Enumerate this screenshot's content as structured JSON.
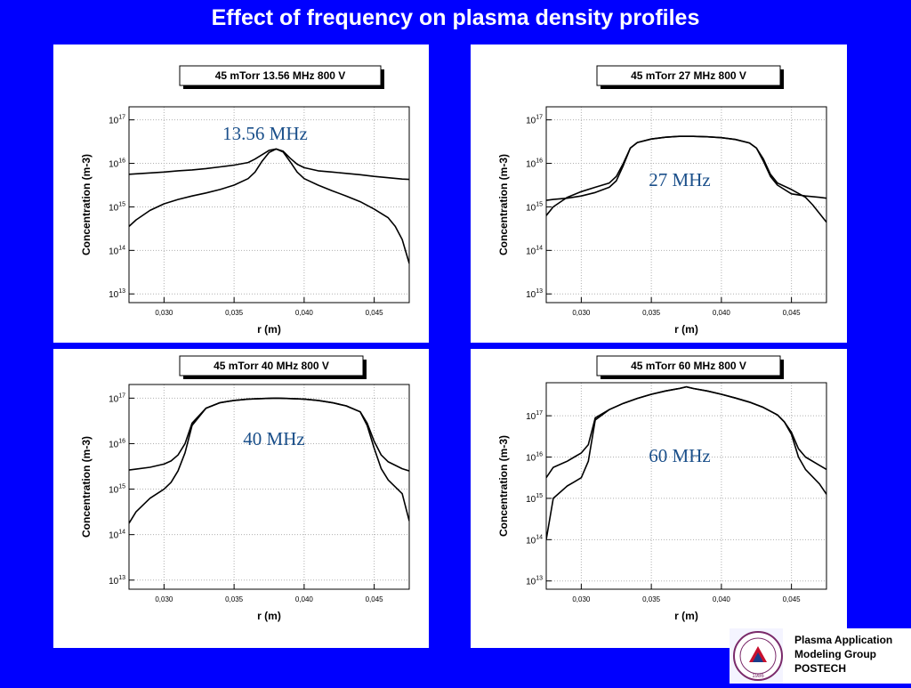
{
  "slide": {
    "title": "Effect of frequency on plasma density profiles",
    "footer_lines": [
      "Plasma Application",
      "Modeling Group",
      "POSTECH"
    ],
    "logo_year": "1986"
  },
  "colors": {
    "background": "#0000ff",
    "panel": "#ffffff",
    "label_blue": "#1a4f8a",
    "curve": "#000000"
  },
  "chart_data": [
    {
      "type": "line",
      "title": "45 mTorr  13.56 MHz  800 V",
      "annotation": "13.56 MHz",
      "xlabel": "r (m)",
      "ylabel": "Concentration (m-3)",
      "xlim": [
        0.0275,
        0.0475
      ],
      "ylim_log10": [
        12.8,
        17.3
      ],
      "xticks": [
        "0,030",
        "0,035",
        "0,040",
        "0,045"
      ],
      "yticks": [
        "13",
        "14",
        "15",
        "16",
        "17"
      ],
      "yscale": "log",
      "grid": true,
      "series": [
        {
          "x": [
            0.0275,
            0.028,
            0.029,
            0.03,
            0.031,
            0.032,
            0.033,
            0.034,
            0.035,
            0.036,
            0.0365,
            0.037,
            0.0375,
            0.038,
            0.0385,
            0.039,
            0.0395,
            0.04,
            0.041,
            0.042,
            0.043,
            0.044,
            0.045,
            0.046,
            0.0465,
            0.047,
            0.0475
          ],
          "y": [
            14.55,
            14.7,
            14.92,
            15.07,
            15.17,
            15.25,
            15.32,
            15.4,
            15.5,
            15.65,
            15.8,
            16.05,
            16.25,
            16.33,
            16.26,
            16.04,
            15.8,
            15.65,
            15.5,
            15.37,
            15.25,
            15.12,
            14.95,
            14.75,
            14.55,
            14.25,
            13.7
          ]
        },
        {
          "x": [
            0.0275,
            0.028,
            0.029,
            0.03,
            0.031,
            0.032,
            0.033,
            0.034,
            0.035,
            0.036,
            0.0365,
            0.037,
            0.0375,
            0.038,
            0.0385,
            0.039,
            0.0395,
            0.04,
            0.041,
            0.042,
            0.043,
            0.044,
            0.045,
            0.046,
            0.047,
            0.0475
          ],
          "y": [
            15.75,
            15.76,
            15.78,
            15.8,
            15.83,
            15.85,
            15.88,
            15.92,
            15.96,
            16.02,
            16.1,
            16.2,
            16.3,
            16.33,
            16.28,
            16.12,
            15.98,
            15.9,
            15.83,
            15.8,
            15.77,
            15.74,
            15.7,
            15.67,
            15.64,
            15.63
          ]
        }
      ]
    },
    {
      "type": "line",
      "title": "45 mTorr  27 MHz  800 V",
      "annotation": "27 MHz",
      "xlabel": "r (m)",
      "ylabel": "Concentration (m-3)",
      "xlim": [
        0.0275,
        0.0475
      ],
      "ylim_log10": [
        12.8,
        17.3
      ],
      "xticks": [
        "0,030",
        "0,035",
        "0,040",
        "0,045"
      ],
      "yticks": [
        "13",
        "14",
        "15",
        "16",
        "17"
      ],
      "yscale": "log",
      "grid": true,
      "series": [
        {
          "x": [
            0.0275,
            0.028,
            0.029,
            0.03,
            0.031,
            0.032,
            0.0325,
            0.033,
            0.0335,
            0.034,
            0.035,
            0.036,
            0.037,
            0.038,
            0.039,
            0.04,
            0.041,
            0.042,
            0.0425,
            0.043,
            0.0435,
            0.044,
            0.045,
            0.046,
            0.0465,
            0.047,
            0.0475
          ],
          "y": [
            14.8,
            15.0,
            15.22,
            15.35,
            15.45,
            15.55,
            15.7,
            16.0,
            16.35,
            16.48,
            16.56,
            16.6,
            16.62,
            16.62,
            16.61,
            16.59,
            16.55,
            16.47,
            16.35,
            16.1,
            15.75,
            15.55,
            15.4,
            15.22,
            15.05,
            14.85,
            14.65
          ]
        },
        {
          "x": [
            0.0275,
            0.028,
            0.029,
            0.03,
            0.031,
            0.032,
            0.0325,
            0.033,
            0.0335,
            0.034,
            0.035,
            0.036,
            0.037,
            0.038,
            0.039,
            0.04,
            0.041,
            0.042,
            0.0425,
            0.043,
            0.0435,
            0.044,
            0.045,
            0.046,
            0.047,
            0.0475
          ],
          "y": [
            15.15,
            15.17,
            15.2,
            15.25,
            15.33,
            15.45,
            15.6,
            15.95,
            16.35,
            16.48,
            16.56,
            16.6,
            16.62,
            16.62,
            16.61,
            16.59,
            16.55,
            16.47,
            16.35,
            16.05,
            15.7,
            15.5,
            15.3,
            15.25,
            15.22,
            15.2
          ]
        }
      ]
    },
    {
      "type": "line",
      "title": "45 mTorr  40 MHz  800 V",
      "annotation": "40 MHz",
      "xlabel": "r (m)",
      "ylabel": "Concentration (m-3)",
      "xlim": [
        0.0275,
        0.0475
      ],
      "ylim_log10": [
        12.8,
        17.3
      ],
      "xticks": [
        "0,030",
        "0,035",
        "0,040",
        "0,045"
      ],
      "yticks": [
        "13",
        "14",
        "15",
        "16",
        "17"
      ],
      "yscale": "log",
      "grid": true,
      "series": [
        {
          "x": [
            0.0275,
            0.028,
            0.029,
            0.03,
            0.0305,
            0.031,
            0.0315,
            0.032,
            0.033,
            0.034,
            0.035,
            0.036,
            0.037,
            0.038,
            0.039,
            0.04,
            0.041,
            0.042,
            0.043,
            0.044,
            0.0445,
            0.045,
            0.0455,
            0.046,
            0.047,
            0.0475
          ],
          "y": [
            14.25,
            14.5,
            14.8,
            15.0,
            15.15,
            15.4,
            15.8,
            16.4,
            16.78,
            16.9,
            16.95,
            16.98,
            16.99,
            17.0,
            16.99,
            16.98,
            16.95,
            16.9,
            16.83,
            16.7,
            16.4,
            15.9,
            15.45,
            15.2,
            14.9,
            14.3
          ]
        },
        {
          "x": [
            0.0275,
            0.028,
            0.029,
            0.03,
            0.0305,
            0.031,
            0.0315,
            0.032,
            0.033,
            0.034,
            0.035,
            0.036,
            0.037,
            0.038,
            0.039,
            0.04,
            0.041,
            0.042,
            0.043,
            0.044,
            0.0445,
            0.045,
            0.0455,
            0.046,
            0.047,
            0.0475
          ],
          "y": [
            15.42,
            15.44,
            15.48,
            15.55,
            15.62,
            15.75,
            16.0,
            16.45,
            16.78,
            16.9,
            16.95,
            16.98,
            16.99,
            17.0,
            16.99,
            16.98,
            16.95,
            16.9,
            16.83,
            16.7,
            16.45,
            16.05,
            15.75,
            15.6,
            15.45,
            15.4
          ]
        }
      ]
    },
    {
      "type": "line",
      "title": "45 mTorr  60 MHz  800 V",
      "annotation": "60 MHz",
      "xlabel": "r (m)",
      "ylabel": "Concentration (m-3)",
      "xlim": [
        0.0275,
        0.0475
      ],
      "ylim_log10": [
        12.8,
        17.8
      ],
      "xticks": [
        "0,030",
        "0,035",
        "0,040",
        "0,045"
      ],
      "yticks": [
        "13",
        "14",
        "15",
        "16",
        "17"
      ],
      "yscale": "log",
      "grid": true,
      "series": [
        {
          "x": [
            0.0275,
            0.028,
            0.029,
            0.0295,
            0.03,
            0.0305,
            0.031,
            0.032,
            0.033,
            0.034,
            0.035,
            0.036,
            0.037,
            0.0375,
            0.038,
            0.039,
            0.04,
            0.041,
            0.042,
            0.043,
            0.044,
            0.0445,
            0.045,
            0.0455,
            0.046,
            0.047,
            0.0475
          ],
          "y": [
            14.0,
            15.0,
            15.3,
            15.4,
            15.5,
            15.9,
            16.9,
            17.15,
            17.3,
            17.42,
            17.52,
            17.6,
            17.66,
            17.7,
            17.66,
            17.6,
            17.52,
            17.43,
            17.33,
            17.2,
            17.02,
            16.85,
            16.55,
            16.0,
            15.7,
            15.35,
            15.1
          ]
        },
        {
          "x": [
            0.0275,
            0.028,
            0.029,
            0.0295,
            0.03,
            0.0305,
            0.031,
            0.032,
            0.033,
            0.034,
            0.035,
            0.036,
            0.037,
            0.0375,
            0.038,
            0.039,
            0.04,
            0.041,
            0.042,
            0.043,
            0.044,
            0.0445,
            0.045,
            0.0455,
            0.046,
            0.047,
            0.0475
          ],
          "y": [
            15.5,
            15.75,
            15.9,
            16.0,
            16.1,
            16.3,
            16.95,
            17.15,
            17.3,
            17.42,
            17.52,
            17.6,
            17.66,
            17.7,
            17.66,
            17.6,
            17.52,
            17.43,
            17.33,
            17.2,
            17.02,
            16.85,
            16.6,
            16.2,
            16.0,
            15.8,
            15.7
          ]
        }
      ]
    }
  ]
}
